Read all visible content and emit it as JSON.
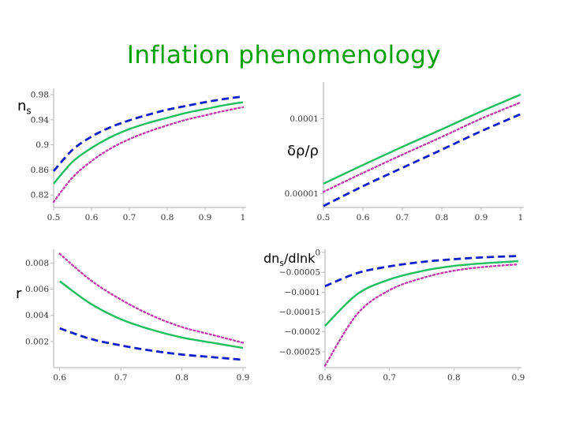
{
  "title": "Inflation phenomenology",
  "colors": {
    "solid": "#1fbf5f",
    "dashed": "#1020c8",
    "dotted": "#c03caa"
  },
  "chart_data": [
    {
      "type": "line",
      "label": "n",
      "label_sub": "s",
      "xlim": [
        0.5,
        1.0
      ],
      "ylim": [
        0.8,
        0.985
      ],
      "x_ticks": [
        0.5,
        0.6,
        0.7,
        0.8,
        0.9,
        1
      ],
      "x_tick_labels": [
        "0.5",
        "0.6",
        "0.7",
        "0.8",
        "0.9",
        "1"
      ],
      "y_ticks": [
        0.82,
        0.86,
        0.9,
        0.94,
        0.98
      ],
      "y_tick_labels": [
        "0.82",
        "0.86",
        "0.9",
        "0.94",
        "0.98"
      ],
      "series": [
        {
          "style": "dashed",
          "x": [
            0.5,
            0.55,
            0.6,
            0.65,
            0.7,
            0.75,
            0.8,
            0.85,
            0.9,
            0.95,
            1.0
          ],
          "y": [
            0.858,
            0.892,
            0.913,
            0.928,
            0.939,
            0.948,
            0.956,
            0.962,
            0.968,
            0.973,
            0.977
          ]
        },
        {
          "style": "solid",
          "x": [
            0.5,
            0.55,
            0.6,
            0.65,
            0.7,
            0.75,
            0.8,
            0.85,
            0.9,
            0.95,
            1.0
          ],
          "y": [
            0.838,
            0.873,
            0.895,
            0.912,
            0.925,
            0.935,
            0.943,
            0.951,
            0.957,
            0.963,
            0.968
          ]
        },
        {
          "style": "dotted",
          "x": [
            0.5,
            0.55,
            0.6,
            0.65,
            0.7,
            0.75,
            0.8,
            0.85,
            0.9,
            0.95,
            1.0
          ],
          "y": [
            0.809,
            0.848,
            0.874,
            0.894,
            0.909,
            0.921,
            0.931,
            0.94,
            0.947,
            0.954,
            0.96
          ]
        }
      ]
    },
    {
      "type": "line",
      "label": "δρ/ρ",
      "label_sub": "",
      "yscale": "log",
      "xlim": [
        0.5,
        1.0
      ],
      "ylim": [
        6.5e-06,
        0.00028
      ],
      "x_ticks": [
        0.5,
        0.6,
        0.7,
        0.8,
        0.9,
        1
      ],
      "x_tick_labels": [
        "0.5",
        "0.6",
        "0.7",
        "0.8",
        "0.9",
        "1"
      ],
      "y_ticks": [
        1e-05,
        0.0001
      ],
      "y_tick_labels": [
        "0.00001",
        "0.0001"
      ],
      "series": [
        {
          "style": "solid",
          "x": [
            0.5,
            0.6,
            0.7,
            0.8,
            0.9,
            1.0
          ],
          "y": [
            1.35e-05,
            2.4e-05,
            4.2e-05,
            7.2e-05,
            0.000125,
            0.00021
          ]
        },
        {
          "style": "dotted",
          "x": [
            0.5,
            0.6,
            0.7,
            0.8,
            0.9,
            1.0
          ],
          "y": [
            1.05e-05,
            1.88e-05,
            3.3e-05,
            5.7e-05,
            0.0001,
            0.000165
          ]
        },
        {
          "style": "dashed",
          "x": [
            0.5,
            0.6,
            0.7,
            0.8,
            0.9,
            1.0
          ],
          "y": [
            6.8e-06,
            1.25e-05,
            2.2e-05,
            3.85e-05,
            6.8e-05,
            0.000115
          ]
        }
      ]
    },
    {
      "type": "line",
      "label": "r",
      "label_sub": "",
      "xlim": [
        0.59,
        0.9
      ],
      "ylim": [
        0.0,
        0.0088
      ],
      "x_ticks": [
        0.6,
        0.7,
        0.8,
        0.9
      ],
      "x_tick_labels": [
        "0.6",
        "0.7",
        "0.8",
        "0.9"
      ],
      "y_ticks": [
        0.002,
        0.004,
        0.006,
        0.008
      ],
      "y_tick_labels": [
        "0.002",
        "0.004",
        "0.006",
        "0.008"
      ],
      "series": [
        {
          "style": "dotted",
          "x": [
            0.6,
            0.65,
            0.7,
            0.75,
            0.8,
            0.85,
            0.9
          ],
          "y": [
            0.0087,
            0.0067,
            0.0052,
            0.004,
            0.0031,
            0.0025,
            0.0019
          ]
        },
        {
          "style": "solid",
          "x": [
            0.6,
            0.65,
            0.7,
            0.75,
            0.8,
            0.85,
            0.9
          ],
          "y": [
            0.0066,
            0.0049,
            0.0037,
            0.0029,
            0.0023,
            0.0019,
            0.0015
          ]
        },
        {
          "style": "dashed",
          "x": [
            0.6,
            0.65,
            0.7,
            0.75,
            0.8,
            0.85,
            0.9
          ],
          "y": [
            0.003,
            0.0022,
            0.0017,
            0.0013,
            0.001,
            0.0008,
            0.0006
          ]
        }
      ]
    },
    {
      "type": "line",
      "label": "dn",
      "label_sub": "s",
      "label_suffix": "/dlnk",
      "xlim": [
        0.6,
        0.9
      ],
      "ylim": [
        -0.00029,
        0.0
      ],
      "x_ticks": [
        0.6,
        0.7,
        0.8,
        0.9
      ],
      "x_tick_labels": [
        "0.6",
        "0.7",
        "0.8",
        "0.9"
      ],
      "y_ticks": [
        0,
        -5e-05,
        -0.0001,
        -0.00015,
        -0.0002,
        -0.00025
      ],
      "y_tick_labels": [
        "0",
        "−0.00005",
        "−0.0001",
        "−0.00015",
        "−0.0002",
        "−0.00025"
      ],
      "series": [
        {
          "style": "dashed",
          "x": [
            0.6,
            0.65,
            0.7,
            0.75,
            0.8,
            0.85,
            0.9
          ],
          "y": [
            -8.5e-05,
            -5.2e-05,
            -3.5e-05,
            -2.4e-05,
            -1.7e-05,
            -1.2e-05,
            -9e-06
          ]
        },
        {
          "style": "solid",
          "x": [
            0.6,
            0.65,
            0.7,
            0.75,
            0.8,
            0.85,
            0.9
          ],
          "y": [
            -0.000185,
            -0.000105,
            -6.8e-05,
            -4.7e-05,
            -3.4e-05,
            -2.7e-05,
            -2.2e-05
          ]
        },
        {
          "style": "dotted",
          "x": [
            0.6,
            0.65,
            0.7,
            0.75,
            0.8,
            0.85,
            0.9
          ],
          "y": [
            -0.000285,
            -0.000155,
            -9.5e-05,
            -6.5e-05,
            -4.6e-05,
            -3.6e-05,
            -3e-05
          ]
        }
      ]
    }
  ]
}
